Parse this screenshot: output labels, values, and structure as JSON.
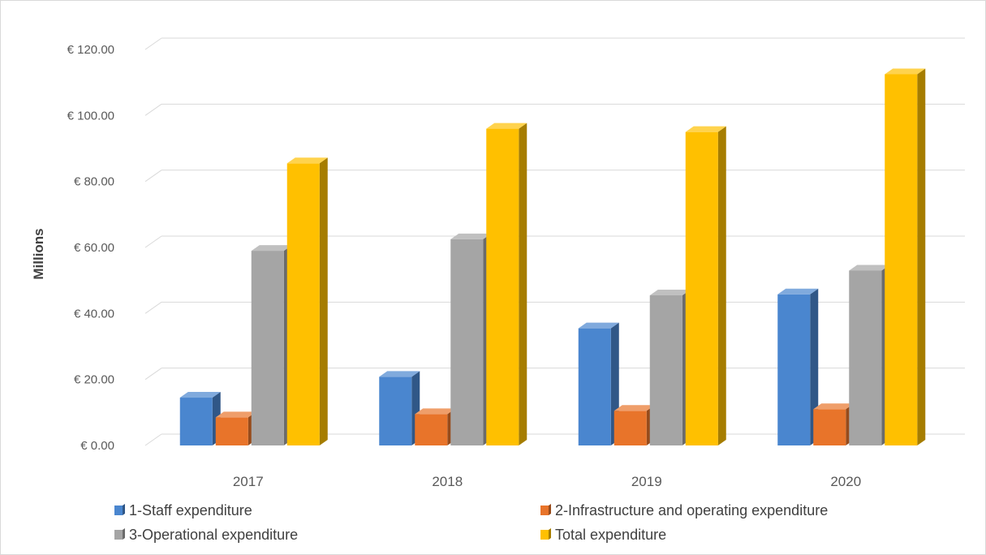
{
  "chart_data": {
    "type": "bar",
    "style": "3d-clustered-column",
    "title": "",
    "xlabel": "",
    "ylabel": "Millions",
    "categories": [
      "2017",
      "2018",
      "2019",
      "2020"
    ],
    "ylim": [
      0,
      120
    ],
    "yticks": [
      0,
      20,
      40,
      60,
      80,
      100,
      120
    ],
    "ytick_labels": [
      "€ 0.00",
      "€ 20.00",
      "€ 40.00",
      "€ 60.00",
      "€ 80.00",
      "€ 100.00",
      "€ 120.00"
    ],
    "grid": true,
    "legend_position": "bottom",
    "series": [
      {
        "name": "1-Staff expenditure",
        "color": "#4a86cf",
        "values": [
          14.5,
          20.8,
          35.5,
          45.8
        ]
      },
      {
        "name": "2-Infrastructure and operating expenditure",
        "color": "#e8742a",
        "values": [
          8.5,
          9.5,
          10.5,
          11.0
        ]
      },
      {
        "name": "3-Operational expenditure",
        "color": "#a5a5a5",
        "values": [
          59.0,
          62.5,
          45.5,
          53.0
        ]
      },
      {
        "name": "Total expenditure",
        "color": "#ffc000",
        "values": [
          85.5,
          96.0,
          95.0,
          112.5
        ]
      }
    ]
  }
}
